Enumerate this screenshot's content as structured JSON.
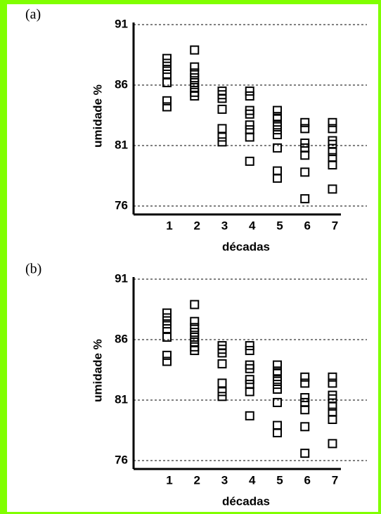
{
  "chart_data": [
    {
      "type": "scatter",
      "label": "(a)",
      "x_label": "décadas",
      "y_label": "umidade %",
      "x": [
        1,
        1,
        1,
        1,
        1,
        1,
        1,
        2,
        2,
        2,
        2,
        2,
        2,
        2,
        2,
        3,
        3,
        3,
        3,
        3,
        3,
        3,
        4,
        4,
        4,
        4,
        4,
        4,
        4,
        4,
        5,
        5,
        5,
        5,
        5,
        5,
        5,
        5,
        5,
        6,
        6,
        6,
        6,
        6,
        6,
        6,
        7,
        7,
        7,
        7,
        7,
        7,
        7,
        7
      ],
      "values": [
        88.2,
        87.8,
        87.3,
        86.9,
        86.2,
        84.7,
        84.2,
        88.9,
        87.5,
        87.0,
        86.6,
        86.2,
        85.8,
        85.4,
        85.1,
        85.5,
        85.2,
        84.9,
        84.0,
        82.4,
        81.7,
        81.3,
        85.5,
        85.1,
        83.9,
        83.6,
        82.7,
        82.3,
        81.7,
        79.7,
        83.9,
        83.4,
        83.2,
        82.7,
        82.3,
        81.9,
        80.8,
        78.9,
        78.3,
        82.9,
        82.4,
        81.2,
        80.8,
        80.2,
        78.8,
        76.6,
        82.9,
        82.4,
        81.4,
        81.1,
        80.5,
        80.0,
        79.4,
        77.4
      ],
      "color": "#000000",
      "xlim": [
        -0.3,
        7.6
      ],
      "xticks": [
        1,
        2,
        3,
        4,
        5,
        6,
        7
      ],
      "ylim": [
        75.3,
        91
      ],
      "yticks": [
        76,
        81,
        86,
        91
      ],
      "grid": true
    },
    {
      "type": "scatter",
      "label": "(b)",
      "x_label": "décadas",
      "y_label": "umidade %",
      "x": [
        1,
        1,
        1,
        1,
        1,
        1,
        1,
        2,
        2,
        2,
        2,
        2,
        2,
        2,
        2,
        3,
        3,
        3,
        3,
        3,
        3,
        3,
        4,
        4,
        4,
        4,
        4,
        4,
        4,
        4,
        5,
        5,
        5,
        5,
        5,
        5,
        5,
        5,
        5,
        6,
        6,
        6,
        6,
        6,
        6,
        6,
        7,
        7,
        7,
        7,
        7,
        7,
        7,
        7
      ],
      "values": [
        88.2,
        87.8,
        87.3,
        86.9,
        86.2,
        84.7,
        84.2,
        88.9,
        87.5,
        87.0,
        86.6,
        86.2,
        85.8,
        85.4,
        85.1,
        85.5,
        85.2,
        84.9,
        84.0,
        82.4,
        81.7,
        81.3,
        85.5,
        85.1,
        83.9,
        83.6,
        82.7,
        82.3,
        81.7,
        79.7,
        83.9,
        83.4,
        83.2,
        82.7,
        82.3,
        81.9,
        80.8,
        78.9,
        78.3,
        82.9,
        82.4,
        81.2,
        80.8,
        80.2,
        78.8,
        76.6,
        82.9,
        82.4,
        81.4,
        81.1,
        80.5,
        80.0,
        79.4,
        77.4
      ],
      "color": "#000000",
      "xlim": [
        -0.3,
        7.6
      ],
      "xticks": [
        1,
        2,
        3,
        4,
        5,
        6,
        7
      ],
      "ylim": [
        75.3,
        91
      ],
      "yticks": [
        76,
        81,
        86,
        91
      ],
      "grid": true
    }
  ]
}
